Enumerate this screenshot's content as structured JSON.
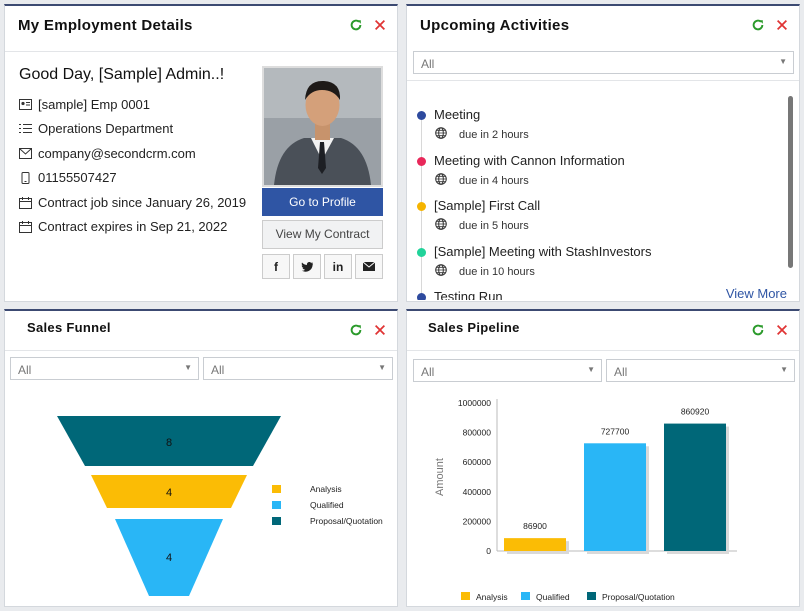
{
  "employment": {
    "title": "My Employment Details",
    "greeting": "Good Day, [Sample] Admin..!",
    "emp_id": "[sample] Emp 0001",
    "department": "Operations Department",
    "email": "company@secondcrm.com",
    "phone": "01155507427",
    "contract_since": "Contract job since January 26, 2019",
    "contract_expires": "Contract expires in Sep 21, 2022",
    "go_profile_label": "Go to Profile",
    "view_contract_label": "View My Contract",
    "social": [
      "f",
      "t",
      "in",
      "mail"
    ]
  },
  "activities": {
    "title": "Upcoming Activities",
    "filter_value": "All",
    "items": [
      {
        "name": "Meeting",
        "due": "due in 2 hours",
        "color": "#2e4a9e"
      },
      {
        "name": "Meeting with Cannon Information",
        "due": "due in 4 hours",
        "color": "#e8285a"
      },
      {
        "name": "[Sample] First Call",
        "due": "due in 5 hours",
        "color": "#f5b400"
      },
      {
        "name": "[Sample] Meeting with StashInvestors",
        "due": "due in 10 hours",
        "color": "#21d39a"
      },
      {
        "name": "Testing Run",
        "due": "",
        "color": "#2e4a9e"
      }
    ],
    "view_more": "View More"
  },
  "funnel": {
    "title": "Sales Funnel",
    "filter1": "All",
    "filter2": "All"
  },
  "pipeline": {
    "title": "Sales Pipeline",
    "filter1": "All",
    "filter2": "All"
  },
  "colors": {
    "analysis": "#fbbc05",
    "qualified": "#29b6f6",
    "proposal": "#006778"
  },
  "chart_data": [
    {
      "type": "funnel",
      "stages": [
        {
          "name": "Proposal/Quotation",
          "value": 8
        },
        {
          "name": "Analysis",
          "value": 4
        },
        {
          "name": "Qualified",
          "value": 4
        }
      ],
      "legend": [
        "Analysis",
        "Qualified",
        "Proposal/Quotation"
      ]
    },
    {
      "type": "bar",
      "categories": [
        "Analysis",
        "Qualified",
        "Proposal/Quotation"
      ],
      "values": [
        86900,
        727700,
        860920
      ],
      "ylabel": "Amount",
      "ylim": [
        0,
        1000000
      ],
      "yticks": [
        0,
        200000,
        400000,
        600000,
        800000,
        1000000
      ],
      "legend": [
        "Analysis",
        "Qualified",
        "Proposal/Quotation"
      ]
    }
  ]
}
